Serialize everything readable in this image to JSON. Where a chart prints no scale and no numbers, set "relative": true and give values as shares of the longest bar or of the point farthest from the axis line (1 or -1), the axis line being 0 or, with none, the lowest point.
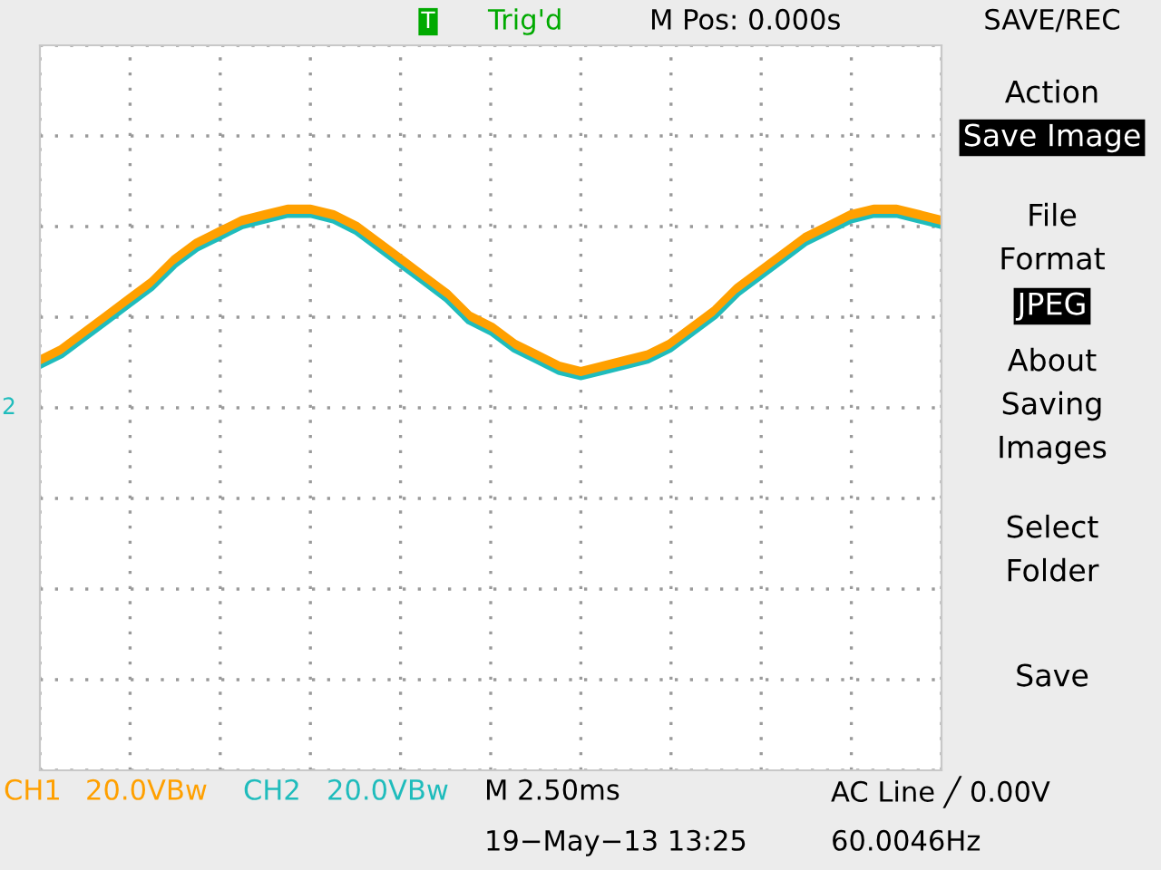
{
  "chart_data": {
    "type": "line",
    "relative": true,
    "grid": true,
    "tick_labels": false,
    "legend": false,
    "categories": [
      null,
      null,
      null,
      null,
      null,
      null,
      null,
      null,
      null,
      null,
      null,
      null,
      null,
      null,
      null,
      null,
      null,
      null,
      null,
      null,
      null,
      null,
      null,
      null,
      null,
      null,
      null,
      null,
      null,
      null,
      null,
      null,
      null,
      null,
      null,
      null,
      null,
      null,
      null,
      null,
      null
    ],
    "series": [
      {
        "name": "CH2",
        "color": "#1fbcbc",
        "values": [
          0.72,
          0.74,
          0.77,
          0.8,
          0.83,
          0.86,
          0.9,
          0.93,
          0.95,
          0.97,
          0.98,
          0.99,
          0.99,
          0.98,
          0.96,
          0.93,
          0.9,
          0.87,
          0.84,
          0.8,
          0.78,
          0.75,
          0.73,
          0.71,
          0.7,
          0.71,
          0.72,
          0.73,
          0.75,
          0.78,
          0.81,
          0.85,
          0.88,
          0.91,
          0.94,
          0.96,
          0.98,
          0.99,
          0.99,
          0.98,
          0.97
        ]
      },
      {
        "name": "CH1",
        "color": "#ffa000",
        "values": [
          0.73,
          0.75,
          0.78,
          0.81,
          0.84,
          0.87,
          0.91,
          0.94,
          0.96,
          0.98,
          0.99,
          1.0,
          1.0,
          0.99,
          0.97,
          0.94,
          0.91,
          0.88,
          0.85,
          0.81,
          0.79,
          0.76,
          0.74,
          0.72,
          0.71,
          0.72,
          0.73,
          0.74,
          0.76,
          0.79,
          0.82,
          0.86,
          0.89,
          0.92,
          0.95,
          0.97,
          0.99,
          1.0,
          1.0,
          0.99,
          0.98
        ]
      }
    ],
    "annotations": [
      "Trig'd",
      "M Pos: 0.000s",
      "SAVE/REC",
      "Action",
      "Save Image",
      "File",
      "Format",
      "JPEG",
      "About",
      "Saving",
      "Images",
      "Select",
      "Folder",
      "Save",
      "20.0VBw",
      "20.0VBw",
      "M 2.50ms",
      "19−May−13 13:25",
      "AC Line ╱ 0.00V",
      "60.0046Hz",
      "2",
      "T"
    ]
  }
}
